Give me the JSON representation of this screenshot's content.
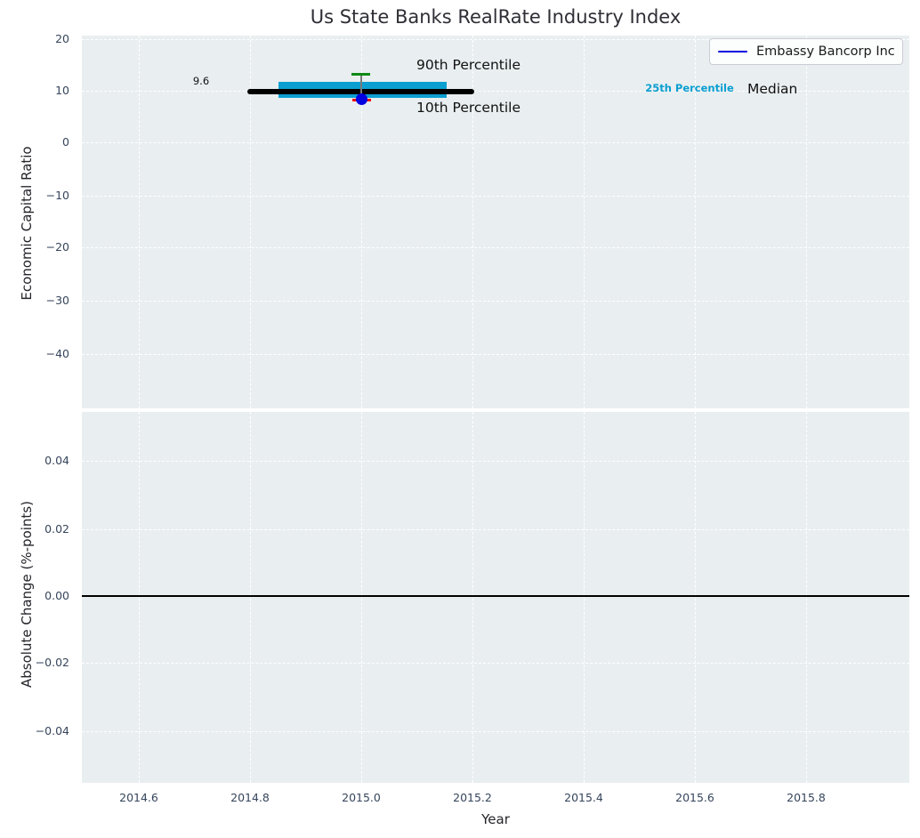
{
  "title": "Us State Banks RealRate Industry Index",
  "colors": {
    "panel_background": "#e9eef0",
    "grid": "#ffffff",
    "median": "#000000",
    "iqr_band": "#0b9fd1",
    "p90_cap": "#0c8b15",
    "p10_cap": "#f20000",
    "whisker": "#7a7a7a",
    "company": "#0000e0",
    "zero_line": "#000000",
    "tick_text": "#36455c"
  },
  "chart_data": [
    {
      "type": "scatter",
      "panel": "top",
      "title": "Us State Banks RealRate Industry Index",
      "xlabel": "",
      "ylabel": "Economic Capital Ratio",
      "xlim": [
        2014.5,
        2015.99
      ],
      "ylim": [
        -50.7,
        20.7
      ],
      "xticks": [
        "2014.6",
        "2014.8",
        "2015.0",
        "2015.2",
        "2015.4",
        "2015.6",
        "2015.8"
      ],
      "yticks": [
        "20",
        "10",
        "0",
        "−10",
        "−20",
        "−30",
        "−40"
      ],
      "grid": "white dashed, on",
      "legend_position": "upper right",
      "legend": {
        "entries": [
          {
            "label": "Embassy Bancorp Inc",
            "color": "#0000e0"
          }
        ]
      },
      "industry_stats": {
        "year": 2015.0,
        "median": 9.6,
        "median_span_years": [
          2014.8,
          2015.2
        ],
        "p25": 8.6,
        "p75": 11.6,
        "iqr_span_years": [
          2014.85,
          2015.15
        ],
        "p10": 8.1,
        "p90": 12.9
      },
      "company_point": {
        "name": "Embassy Bancorp Inc",
        "x": 2015.0,
        "y": 8.4
      },
      "annotations": {
        "median_value_label": "9.6",
        "p90_label": "90th Percentile",
        "p10_label": "10th Percentile",
        "p25_label": "25th Percentile",
        "median_label": "Median"
      }
    },
    {
      "type": "line",
      "panel": "bottom",
      "xlabel": "Year",
      "ylabel": "Absolute Change (%-points)",
      "xlim": [
        2014.5,
        2015.99
      ],
      "ylim": [
        -0.0556,
        0.0554
      ],
      "xticks": [
        "2014.6",
        "2014.8",
        "2015.0",
        "2015.2",
        "2015.4",
        "2015.6",
        "2015.8"
      ],
      "yticks": [
        "0.04",
        "0.02",
        "0.00",
        "−0.02",
        "−0.04"
      ],
      "grid": "white dashed, on",
      "zero_line": {
        "y": 0.0,
        "color": "#000000",
        "full_width": true
      }
    }
  ]
}
